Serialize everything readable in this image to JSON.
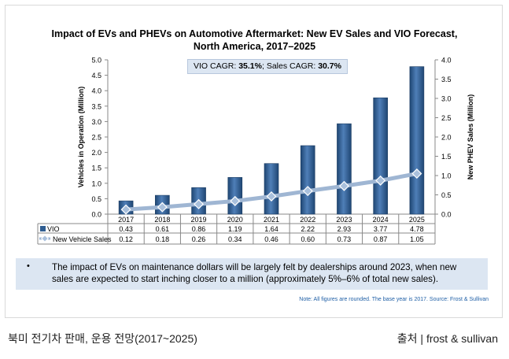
{
  "chart_data": {
    "type": "bar",
    "title_line1": "Impact of EVs and PHEVs on Automotive Aftermarket: New EV Sales and VIO Forecast,",
    "title_line2": "North America, 2017–2025",
    "categories": [
      "2017",
      "2018",
      "2019",
      "2020",
      "2021",
      "2022",
      "2023",
      "2024",
      "2025"
    ],
    "series": [
      {
        "name": "VIO",
        "kind": "bar",
        "axis": "left",
        "color": "#2f5d91",
        "values": [
          0.43,
          0.61,
          0.86,
          1.19,
          1.64,
          2.22,
          2.93,
          3.77,
          4.78
        ],
        "labels": [
          "0.43",
          "0.61",
          "0.86",
          "1.19",
          "1.64",
          "2.22",
          "2.93",
          "3.77",
          "4.78"
        ]
      },
      {
        "name": "New Vehicle Sales",
        "kind": "line",
        "axis": "right",
        "color": "#9fb6d3",
        "values": [
          0.12,
          0.18,
          0.26,
          0.34,
          0.46,
          0.6,
          0.73,
          0.87,
          1.05
        ],
        "labels": [
          "0.12",
          "0.18",
          "0.26",
          "0.34",
          "0.46",
          "0.60",
          "0.73",
          "0.87",
          "1.05"
        ]
      }
    ],
    "ylabel_left": "Vehicles in Operation (Million)",
    "ylabel_right": "New PHEV Sales (Million)",
    "ylim_left": [
      0,
      5
    ],
    "ylim_right": [
      0,
      4
    ],
    "yticks_left": [
      "0.0",
      "0.5",
      "1.0",
      "1.5",
      "2.0",
      "2.5",
      "3.0",
      "3.5",
      "4.0",
      "4.5",
      "5.0"
    ],
    "yticks_right": [
      "0.0",
      "0.5",
      "1.0",
      "1.5",
      "2.0",
      "2.5",
      "3.0",
      "3.5",
      "4.0"
    ],
    "grid": false,
    "legend": "data-table-below"
  },
  "cagr": {
    "vio_label": "VIO CAGR: ",
    "vio_value": "35.1%",
    "sep": "; Sales CAGR: ",
    "sales_value": "30.7%"
  },
  "bullet": {
    "dot": "•",
    "text": "The impact of EVs on maintenance dollars will be largely felt by dealerships around 2023, when new sales are expected to start inching closer to a million (approximately 5%–6% of total new sales)."
  },
  "note": "Note: All figures are rounded. The base year is 2017. Source: Frost & Sullivan",
  "caption": {
    "left": "북미 전기차 판매, 운용 전망(2017~2025)",
    "right": "출처 | frost & sullivan"
  }
}
